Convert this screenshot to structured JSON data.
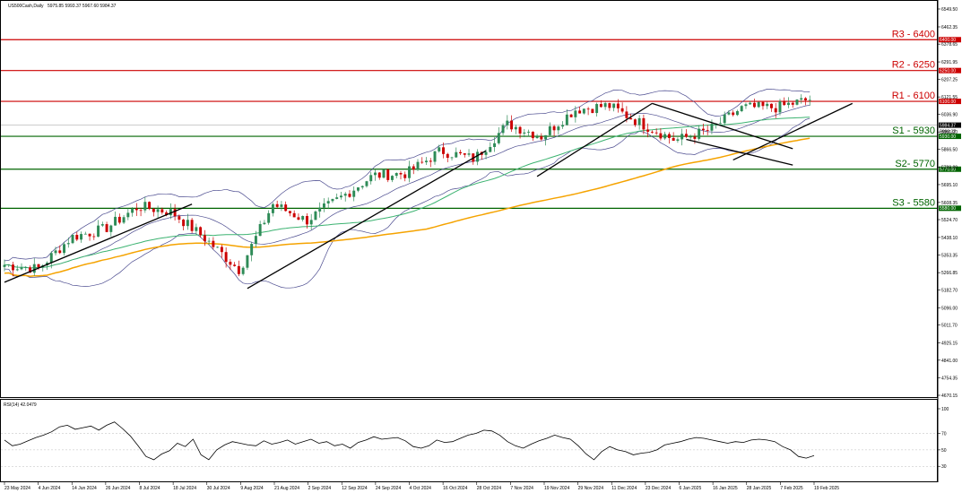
{
  "header": {
    "symbol": "US500Cash,Daily",
    "ohlc": "5975.85 5993.37 5967.60 5984.37"
  },
  "rsi_header": "RSI(14) 42.0479",
  "colors": {
    "bull": "#2e8b57",
    "bear": "#cc0000",
    "resistance": "#cc0000",
    "support": "#006400",
    "ma_fast": "#3cb371",
    "ma_slow": "#f5a300",
    "bands": "#4b4b8f",
    "trend": "#000000",
    "rsi_line": "#000000",
    "price_marker": "#000000"
  },
  "levels": [
    {
      "label": "R3 - 6400",
      "tag": "6400.00",
      "value": 6400,
      "kind": "resistance"
    },
    {
      "label": "R2 - 6250",
      "tag": "6250.00",
      "value": 6250,
      "kind": "resistance"
    },
    {
      "label": "R1 - 6100",
      "tag": "6100.00",
      "value": 6100,
      "kind": "resistance"
    },
    {
      "label": "S1 - 5930",
      "tag": "5930.00",
      "value": 5930,
      "kind": "support"
    },
    {
      "label": "S2- 5770",
      "tag": "5770.00",
      "value": 5770,
      "kind": "support"
    },
    {
      "label": "S3 - 5580",
      "tag": "5580.00",
      "value": 5580,
      "kind": "support"
    }
  ],
  "current_price": {
    "value": 5984.37,
    "tag": "5984.37",
    "subtag": "5993.37"
  },
  "chart_data": [
    {
      "type": "candlestick",
      "title": "US500Cash,Daily",
      "ylim": [
        4670.15,
        6549.5
      ],
      "y_ticks": [
        "6549.50",
        "6462.35",
        "6378.65",
        "6291.95",
        "6207.25",
        "6121.55",
        "6036.90",
        "5951.20",
        "5866.50",
        "5780.80",
        "5695.10",
        "5608.35",
        "5524.70",
        "5438.10",
        "5353.35",
        "5266.85",
        "5182.70",
        "5096.00",
        "5011.70",
        "4925.15",
        "4841.00",
        "4754.35",
        "4670.15"
      ],
      "x_ticks": [
        "23 May 2024",
        "4 Jun 2024",
        "14 Jun 2024",
        "26 Jun 2024",
        "8 Jul 2024",
        "18 Jul 2024",
        "30 Jul 2024",
        "9 Aug 2024",
        "21 Aug 2024",
        "2 Sep 2024",
        "12 Sep 2024",
        "24 Sep 2024",
        "4 Oct 2024",
        "16 Oct 2024",
        "28 Oct 2024",
        "7 Nov 2024",
        "19 Nov 2024",
        "29 Nov 2024",
        "11 Dec 2024",
        "23 Dec 2024",
        "6 Jan 2025",
        "16 Jan 2025",
        "28 Jan 2025",
        "7 Feb 2025",
        "19 Feb 2025"
      ],
      "series": [
        {
          "name": "",
          "type": "close",
          "x": [
            "23 May 2024",
            "4 Jun 2024",
            "14 Jun 2024",
            "26 Jun 2024",
            "8 Jul 2024",
            "18 Jul 2024",
            "30 Jul 2024",
            "9 Aug 2024",
            "21 Aug 2024",
            "2 Sep 2024",
            "12 Sep 2024",
            "24 Sep 2024",
            "4 Oct 2024",
            "16 Oct 2024",
            "28 Oct 2024",
            "7 Nov 2024",
            "19 Nov 2024",
            "29 Nov 2024",
            "11 Dec 2024",
            "23 Dec 2024",
            "6 Jan 2025",
            "16 Jan 2025",
            "28 Jan 2025",
            "7 Feb 2025",
            "19 Feb 2025"
          ],
          "values": [
            5305,
            5285,
            5440,
            5480,
            5590,
            5560,
            5430,
            5280,
            5600,
            5520,
            5630,
            5740,
            5750,
            5860,
            5820,
            5990,
            5930,
            6060,
            6080,
            5990,
            5910,
            5960,
            6070,
            6070,
            6110
          ]
        }
      ]
    },
    {
      "type": "line",
      "title": "RSI(14) 42.0479",
      "ylim": [
        15,
        100
      ],
      "y_ticks": [
        "100",
        "70",
        "50",
        "30"
      ],
      "series": [
        {
          "name": "",
          "values": [
            62,
            55,
            57,
            61,
            65,
            68,
            72,
            78,
            80,
            75,
            77,
            79,
            74,
            80,
            84,
            76,
            67,
            55,
            42,
            38,
            45,
            49,
            58,
            54,
            63,
            44,
            38,
            50,
            56,
            60,
            58,
            56,
            55,
            61,
            57,
            59,
            62,
            57,
            60,
            63,
            58,
            60,
            55,
            57,
            52,
            59,
            62,
            66,
            63,
            64,
            65,
            61,
            54,
            52,
            55,
            62,
            59,
            60,
            64,
            68,
            70,
            74,
            73,
            68,
            60,
            55,
            52,
            57,
            61,
            64,
            68,
            65,
            63,
            55,
            45,
            38,
            48,
            54,
            50,
            48,
            44,
            46,
            47,
            50,
            56,
            58,
            60,
            63,
            65,
            64,
            62,
            60,
            58,
            60,
            59,
            62,
            63,
            62,
            60,
            54,
            50,
            42,
            40,
            43
          ]
        }
      ]
    }
  ]
}
